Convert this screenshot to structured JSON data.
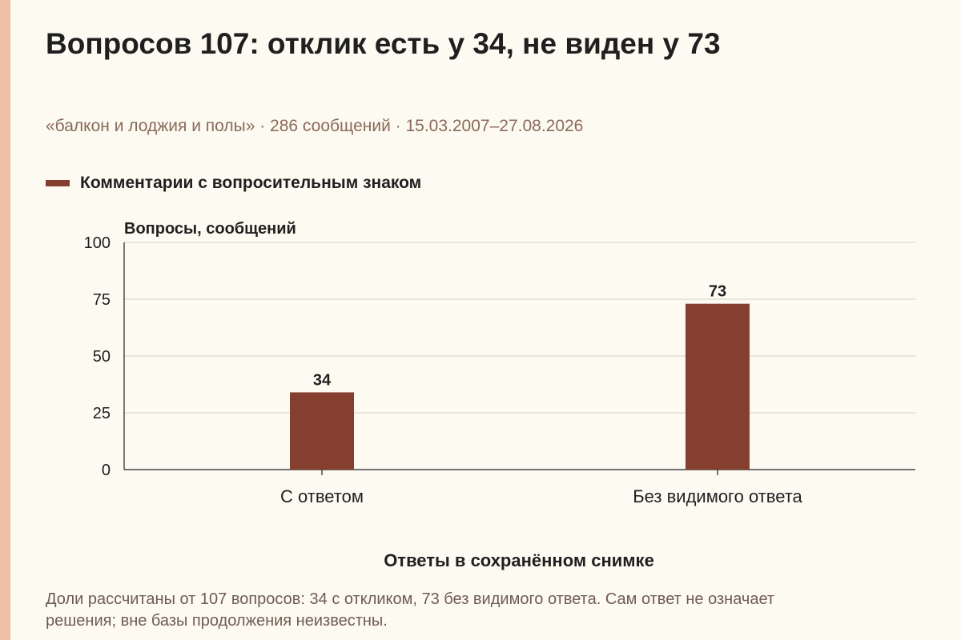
{
  "title": "Вопросов 107: отклик есть у 34, не виден у 73",
  "subtitle": "«балкон и лоджия и полы» · 286 сообщений · 15.03.2007–27.08.2026",
  "note": "Доли рассчитаны от 107 вопросов: 34 с откликом, 73 без видимого ответа. Сам ответ не означает решения; вне базы продолжения неизвестны.",
  "chart_data": {
    "type": "bar",
    "categories": [
      "С ответом",
      "Без видимого ответа"
    ],
    "series": [
      {
        "name": "Комментарии с вопросительным знаком",
        "values": [
          34,
          73
        ],
        "color": "#843f2f"
      }
    ],
    "xlabel": "Ответы в сохранённом снимке",
    "ylabel": "Вопросы, сообщений",
    "ylim": [
      0,
      100
    ],
    "yticks": [
      0,
      25,
      50,
      75,
      100
    ],
    "grid": true,
    "legend_position": "top-left",
    "data_labels": true
  }
}
